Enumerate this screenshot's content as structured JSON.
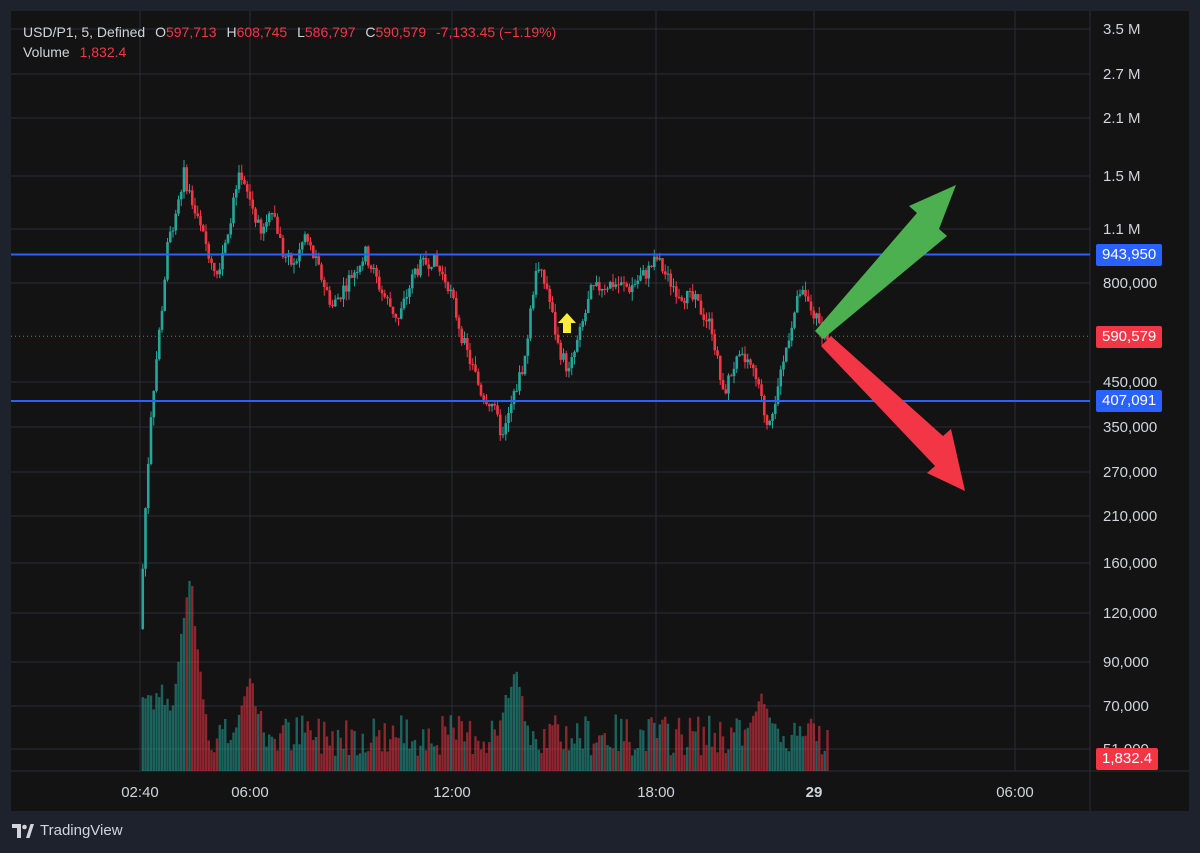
{
  "legend": {
    "symbol": "USD/P1, 5, Defined",
    "open_label": "O",
    "open": "597,713",
    "high_label": "H",
    "high": "608,745",
    "low_label": "L",
    "low": "586,797",
    "close_label": "C",
    "close": "590,579",
    "change": "-7,133.45 (−1.19%)",
    "volume_label": "Volume",
    "volume": "1,832.4"
  },
  "markers": {
    "upper_line": "943,950",
    "last_price": "590,579",
    "lower_line": "407,091",
    "last_volume": "1,832.4"
  },
  "brand": "TradingView",
  "colors": {
    "up": "#26a69a",
    "down": "#f23645",
    "level_line": "#2962ff",
    "arrow_up": "#4caf50",
    "arrow_down": "#f23645",
    "marker": "#ffeb3b"
  },
  "chart_data": {
    "type": "candlestick",
    "y_scale": "log",
    "y_tick_labels": [
      "3.5 M",
      "2.7 M",
      "2.1 M",
      "1.5 M",
      "1.1 M",
      "800,000",
      "450,000",
      "350,000",
      "270,000",
      "210,000",
      "160,000",
      "120,000",
      "90,000",
      "70,000",
      "51,000"
    ],
    "x_tick_labels": [
      "02:40",
      "06:00",
      "12:00",
      "18:00",
      "29",
      "06:00"
    ],
    "horizontal_levels": [
      943950,
      407091
    ],
    "last_close": 590579,
    "price_path": [
      [
        "02:40",
        110000
      ],
      [
        "02:50",
        220000
      ],
      [
        "03:00",
        380000
      ],
      [
        "03:10",
        520000
      ],
      [
        "03:20",
        700000
      ],
      [
        "03:30",
        980000
      ],
      [
        "04:00",
        1500000
      ],
      [
        "04:20",
        1200000
      ],
      [
        "04:40",
        1000000
      ],
      [
        "05:00",
        850000
      ],
      [
        "05:20",
        1100000
      ],
      [
        "05:40",
        1450000
      ],
      [
        "06:00",
        1300000
      ],
      [
        "06:20",
        1050000
      ],
      [
        "06:40",
        1250000
      ],
      [
        "07:00",
        950000
      ],
      [
        "07:20",
        880000
      ],
      [
        "07:40",
        1050000
      ],
      [
        "08:00",
        900000
      ],
      [
        "08:30",
        700000
      ],
      [
        "09:00",
        820000
      ],
      [
        "09:30",
        950000
      ],
      [
        "10:00",
        760000
      ],
      [
        "10:30",
        650000
      ],
      [
        "11:00",
        860000
      ],
      [
        "11:30",
        920000
      ],
      [
        "12:00",
        800000
      ],
      [
        "12:30",
        560000
      ],
      [
        "13:00",
        430000
      ],
      [
        "13:20",
        400000
      ],
      [
        "13:40",
        330000
      ],
      [
        "14:00",
        420000
      ],
      [
        "14:20",
        520000
      ],
      [
        "14:40",
        880000
      ],
      [
        "15:00",
        780000
      ],
      [
        "15:20",
        560000
      ],
      [
        "15:40",
        480000
      ],
      [
        "16:00",
        600000
      ],
      [
        "16:20",
        760000
      ],
      [
        "16:40",
        790000
      ],
      [
        "17:00",
        800000
      ],
      [
        "17:30",
        780000
      ],
      [
        "18:00",
        850000
      ],
      [
        "18:20",
        920000
      ],
      [
        "18:40",
        820000
      ],
      [
        "19:00",
        760000
      ],
      [
        "19:30",
        720000
      ],
      [
        "20:00",
        620000
      ],
      [
        "20:20",
        420000
      ],
      [
        "20:40",
        500000
      ],
      [
        "21:00",
        520000
      ],
      [
        "21:20",
        460000
      ],
      [
        "21:40",
        360000
      ],
      [
        "22:00",
        430000
      ],
      [
        "22:20",
        600000
      ],
      [
        "22:40",
        760000
      ],
      [
        "23:00",
        690000
      ],
      [
        "23:20",
        610000
      ],
      [
        "23:30",
        590579
      ]
    ],
    "volume_spikes": [
      [
        "04:10",
        1
      ],
      [
        "06:00",
        0.45
      ],
      [
        "14:00",
        0.5
      ],
      [
        "21:30",
        0.4
      ]
    ]
  }
}
